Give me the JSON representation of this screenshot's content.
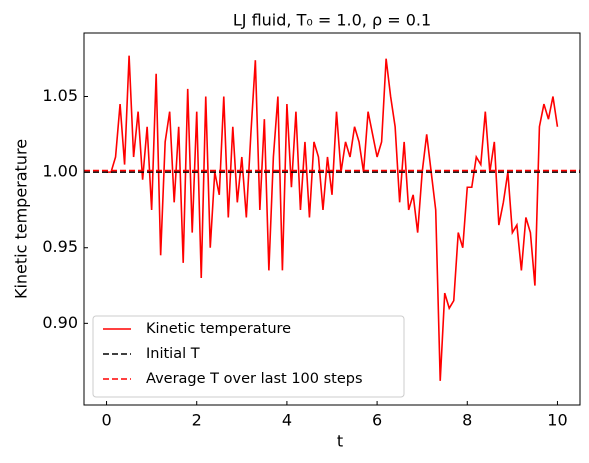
{
  "chart_data": {
    "type": "line",
    "title": "LJ fluid, T₀ = 1.0, ρ = 0.1",
    "xlabel": "t",
    "ylabel": "Kinetic temperature",
    "x": [
      0,
      0.1,
      0.2,
      0.3,
      0.4,
      0.5,
      0.6,
      0.7,
      0.8,
      0.9,
      1.0,
      1.1,
      1.2,
      1.3,
      1.4,
      1.5,
      1.6,
      1.7,
      1.8,
      1.9,
      2.0,
      2.1,
      2.2,
      2.3,
      2.4,
      2.5,
      2.6,
      2.7,
      2.8,
      2.9,
      3.0,
      3.1,
      3.2,
      3.3,
      3.4,
      3.5,
      3.6,
      3.7,
      3.8,
      3.9,
      4.0,
      4.1,
      4.2,
      4.3,
      4.4,
      4.5,
      4.6,
      4.7,
      4.8,
      4.9,
      5.0,
      5.1,
      5.2,
      5.3,
      5.4,
      5.5,
      5.6,
      5.7,
      5.8,
      5.9,
      6.0,
      6.1,
      6.2,
      6.3,
      6.4,
      6.5,
      6.6,
      6.7,
      6.8,
      6.9,
      7.0,
      7.1,
      7.2,
      7.3,
      7.4,
      7.5,
      7.6,
      7.7,
      7.8,
      7.9,
      8.0,
      8.1,
      8.2,
      8.3,
      8.4,
      8.5,
      8.6,
      8.7,
      8.8,
      8.9,
      9.0,
      9.1,
      9.2,
      9.3,
      9.4,
      9.5,
      9.6,
      9.7,
      9.8,
      9.9,
      10.0
    ],
    "series": [
      {
        "name": "Kinetic temperature",
        "color": "#ff0000",
        "dashed": false,
        "values": [
          1.0,
          1.0,
          1.01,
          1.045,
          1.005,
          1.077,
          1.01,
          1.04,
          0.995,
          1.03,
          0.975,
          1.065,
          0.945,
          1.02,
          1.04,
          0.98,
          1.03,
          0.94,
          1.055,
          0.96,
          1.04,
          0.93,
          1.05,
          0.95,
          1.0,
          0.985,
          1.05,
          0.97,
          1.03,
          0.98,
          1.01,
          0.97,
          1.025,
          1.074,
          0.975,
          1.035,
          0.935,
          1.01,
          1.05,
          0.935,
          1.045,
          0.99,
          1.04,
          0.975,
          1.02,
          0.97,
          1.02,
          1.01,
          0.975,
          1.01,
          0.985,
          1.04,
          1.0,
          1.02,
          1.01,
          1.03,
          1.02,
          1.0,
          1.04,
          1.025,
          1.01,
          1.02,
          1.075,
          1.05,
          1.03,
          0.98,
          1.02,
          0.975,
          0.985,
          0.96,
          1.0,
          1.025,
          1.0,
          0.975,
          0.862,
          0.92,
          0.91,
          0.915,
          0.96,
          0.95,
          0.99,
          0.99,
          1.01,
          1.005,
          1.04,
          1.0,
          1.02,
          0.965,
          0.98,
          1.0,
          0.96,
          0.965,
          0.935,
          0.97,
          0.96,
          0.925,
          1.03,
          1.045,
          1.035,
          1.05,
          1.03
        ]
      },
      {
        "name": "Initial T",
        "color": "#000000",
        "dashed": true,
        "x": [
          -0.5,
          10.5
        ],
        "values": [
          1.0,
          1.0
        ]
      },
      {
        "name": "Average T over last 100 steps",
        "color": "#ff0000",
        "dashed": true,
        "x": [
          -0.5,
          10.5
        ],
        "values": [
          1.001,
          1.001
        ]
      }
    ],
    "xlim": [
      -0.5,
      10.5
    ],
    "ylim": [
      0.846,
      1.092
    ],
    "xticks": [
      0,
      2,
      4,
      6,
      8,
      10
    ],
    "yticks": [
      {
        "value": 0.9,
        "label": "0.90"
      },
      {
        "value": 0.95,
        "label": "0.95"
      },
      {
        "value": 1.0,
        "label": "1.00"
      },
      {
        "value": 1.05,
        "label": "1.05"
      }
    ],
    "legend": "lower left",
    "grid": false
  }
}
